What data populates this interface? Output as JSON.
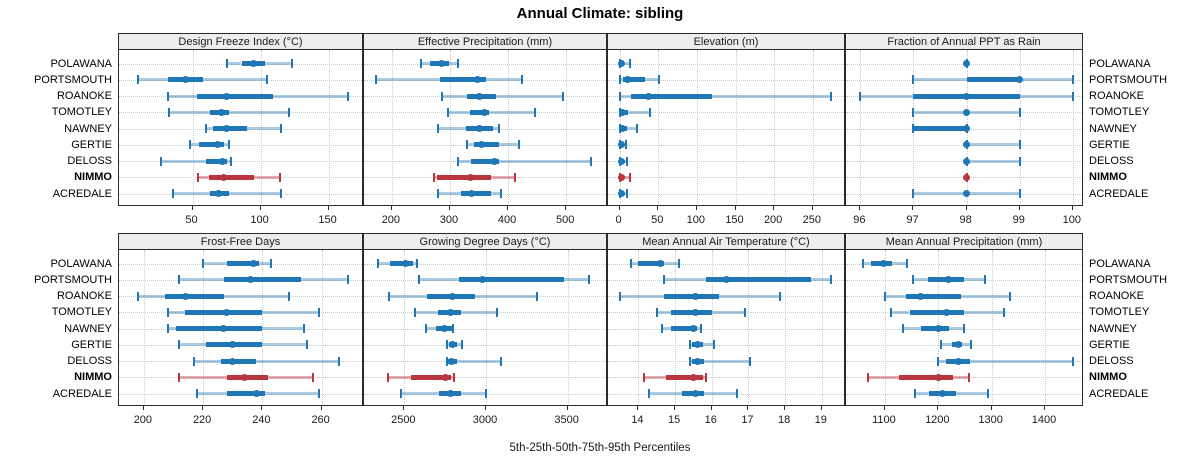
{
  "title": "Annual Climate: sibling",
  "footer": "5th-25th-50th-75th-95th Percentiles",
  "percentile_labels": [
    "5th",
    "25th",
    "50th",
    "75th",
    "95th"
  ],
  "sites": [
    {
      "name": "POLAWANA",
      "highlight": false
    },
    {
      "name": "PORTSMOUTH",
      "highlight": false
    },
    {
      "name": "ROANOKE",
      "highlight": false
    },
    {
      "name": "TOMOTLEY",
      "highlight": false
    },
    {
      "name": "NAWNEY",
      "highlight": false
    },
    {
      "name": "GERTIE",
      "highlight": false
    },
    {
      "name": "DELOSS",
      "highlight": false
    },
    {
      "name": "NIMMO",
      "highlight": true
    },
    {
      "name": "ACREDALE",
      "highlight": false
    }
  ],
  "colors": {
    "series": "#1f77b4",
    "series_light": "rgba(31,119,180,0.38)",
    "highlight": "#b9373c",
    "highlight_light": "rgba(185,55,60,0.42)",
    "header_bg": "#ededed",
    "grid": "#c9c9c9",
    "border": "#2b2b2b"
  },
  "chart_data": {
    "type": "scatter",
    "variant": "percentile_intervals",
    "title": "Annual Climate: sibling",
    "xlabel": "5th-25th-50th-75th-95th Percentiles",
    "legend_position": "none",
    "grid": "dotted",
    "categories": [
      "POLAWANA",
      "PORTSMOUTH",
      "ROANOKE",
      "TOMOTLEY",
      "NAWNEY",
      "GERTIE",
      "DELOSS",
      "NIMMO",
      "ACREDALE"
    ],
    "panels": [
      {
        "title": "Design Freeze Index (°C)",
        "ticks": [
          50,
          100,
          150
        ],
        "xlim": [
          -4,
          176
        ],
        "values": [
          [
            75,
            86,
            95,
            103,
            123
          ],
          [
            10,
            32,
            45,
            58,
            105
          ],
          [
            32,
            53,
            75,
            109,
            164
          ],
          [
            33,
            63,
            71,
            77,
            121
          ],
          [
            60,
            65,
            75,
            90,
            115
          ],
          [
            48,
            55,
            68,
            73,
            77
          ],
          [
            27,
            60,
            72,
            75,
            78
          ],
          [
            54,
            62,
            73,
            95,
            114
          ],
          [
            36,
            63,
            69,
            77,
            115
          ]
        ]
      },
      {
        "title": "Effective Precipitation (mm)",
        "ticks": [
          200,
          300,
          400,
          500
        ],
        "xlim": [
          152,
          572
        ],
        "values": [
          [
            250,
            265,
            286,
            299,
            313
          ],
          [
            172,
            283,
            348,
            362,
            424
          ],
          [
            287,
            330,
            350,
            380,
            495
          ],
          [
            297,
            335,
            360,
            368,
            446
          ],
          [
            280,
            328,
            350,
            374,
            385
          ],
          [
            329,
            342,
            355,
            385,
            419
          ],
          [
            314,
            336,
            376,
            385,
            542
          ],
          [
            272,
            278,
            336,
            370,
            412
          ],
          [
            279,
            319,
            337,
            371,
            388
          ]
        ]
      },
      {
        "title": "Elevation (m)",
        "ticks": [
          0,
          50,
          100,
          150,
          200,
          250
        ],
        "xlim": [
          -15,
          293
        ],
        "values": [
          [
            0,
            1,
            3,
            6,
            14
          ],
          [
            0,
            4,
            10,
            33,
            51
          ],
          [
            0,
            15,
            38,
            119,
            274
          ],
          [
            0,
            2,
            4,
            11,
            39
          ],
          [
            0,
            2,
            4,
            9,
            23
          ],
          [
            0,
            1,
            3,
            5,
            8
          ],
          [
            0,
            1,
            3,
            6,
            10
          ],
          [
            0,
            1,
            3,
            6,
            13
          ],
          [
            0,
            1,
            3,
            5,
            9
          ]
        ]
      },
      {
        "title": "Fraction of Annual PPT as Rain",
        "ticks": [
          96,
          97,
          98,
          99,
          100
        ],
        "xlim": [
          95.73,
          100.21
        ],
        "values": [
          [
            98,
            98,
            98,
            98,
            98
          ],
          [
            97,
            98,
            99,
            99,
            100
          ],
          [
            96,
            97,
            98,
            99,
            100
          ],
          [
            97,
            98,
            98,
            98,
            99
          ],
          [
            97,
            97,
            98,
            98,
            98
          ],
          [
            98,
            98,
            98,
            98,
            99
          ],
          [
            98,
            98,
            98,
            98,
            99
          ],
          [
            98,
            98,
            98,
            98,
            98
          ],
          [
            97,
            98,
            98,
            98,
            99
          ]
        ]
      },
      {
        "title": "Frost-Free Days",
        "ticks": [
          200,
          220,
          240,
          260
        ],
        "xlim": [
          191.6,
          274.3
        ],
        "values": [
          [
            220,
            228,
            237,
            239,
            243
          ],
          [
            212,
            227,
            236,
            253,
            269
          ],
          [
            198,
            207,
            214,
            227,
            249
          ],
          [
            208,
            214,
            228,
            240,
            259
          ],
          [
            208,
            211,
            227,
            240,
            254
          ],
          [
            212,
            221,
            230,
            240,
            255
          ],
          [
            217,
            226,
            230,
            238,
            266
          ],
          [
            212,
            228,
            234,
            242,
            257
          ],
          [
            218,
            228,
            238,
            241,
            259
          ]
        ]
      },
      {
        "title": "Growing Degree Days (°C)",
        "ticks": [
          2500,
          3000,
          3500
        ],
        "xlim": [
          2253,
          3747
        ],
        "values": [
          [
            2340,
            2415,
            2505,
            2555,
            2580
          ],
          [
            2590,
            2835,
            2980,
            3480,
            3630
          ],
          [
            2405,
            2640,
            2795,
            2935,
            3315
          ],
          [
            2565,
            2705,
            2785,
            2845,
            3065
          ],
          [
            2630,
            2695,
            2745,
            2790,
            2800
          ],
          [
            2760,
            2775,
            2795,
            2820,
            2855
          ],
          [
            2760,
            2770,
            2790,
            2820,
            3090
          ],
          [
            2400,
            2540,
            2750,
            2788,
            2804
          ],
          [
            2480,
            2710,
            2780,
            2845,
            3000
          ]
        ]
      },
      {
        "title": "Mean Annual Air Temperature (°C)",
        "ticks": [
          14,
          15,
          16,
          17,
          18,
          19
        ],
        "xlim": [
          13.17,
          19.66
        ],
        "values": [
          [
            13.8,
            14.0,
            14.6,
            14.7,
            15.1
          ],
          [
            14.7,
            15.85,
            16.4,
            18.7,
            19.25
          ],
          [
            13.5,
            14.7,
            15.55,
            16.2,
            17.85
          ],
          [
            14.5,
            14.9,
            15.55,
            16.0,
            16.9
          ],
          [
            14.65,
            14.9,
            15.5,
            15.6,
            15.7
          ],
          [
            15.4,
            15.45,
            15.6,
            15.75,
            16.05
          ],
          [
            15.4,
            15.45,
            15.6,
            15.8,
            17.05
          ],
          [
            14.15,
            14.75,
            15.5,
            15.77,
            15.85
          ],
          [
            14.3,
            15.2,
            15.55,
            15.8,
            16.7
          ]
        ]
      },
      {
        "title": "Mean Annual Precipitation (mm)",
        "ticks": [
          1100,
          1200,
          1300,
          1400
        ],
        "xlim": [
          1027,
          1473
        ],
        "values": [
          [
            1058,
            1074,
            1098,
            1114,
            1141
          ],
          [
            1152,
            1180,
            1220,
            1249,
            1288
          ],
          [
            1100,
            1139,
            1167,
            1242,
            1334
          ],
          [
            1111,
            1146,
            1215,
            1249,
            1324
          ],
          [
            1133,
            1167,
            1200,
            1220,
            1249
          ],
          [
            1205,
            1225,
            1237,
            1245,
            1262
          ],
          [
            1200,
            1215,
            1237,
            1260,
            1452
          ],
          [
            1068,
            1127,
            1200,
            1227,
            1258
          ],
          [
            1156,
            1183,
            1208,
            1233,
            1294
          ]
        ]
      }
    ]
  }
}
